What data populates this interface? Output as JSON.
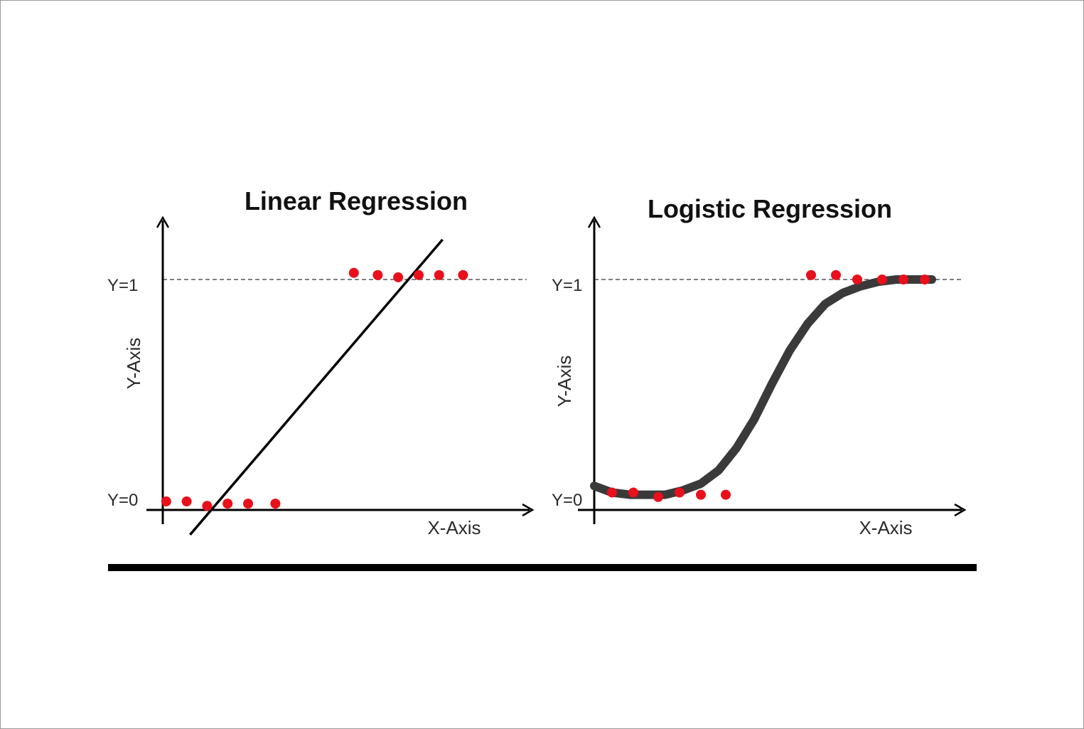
{
  "colors": {
    "points": "#e8101a",
    "line": "#000000",
    "curve": "#3a3a3a",
    "axis": "#000000",
    "threshold": "#555555",
    "baseline_bar": "#000000"
  },
  "chart_data": [
    {
      "type": "scatter",
      "title": "Linear Regression",
      "xlabel": "X-Axis",
      "ylabel": "Y-Axis",
      "xlim": [
        0,
        10
      ],
      "ylim": [
        -0.15,
        1.3
      ],
      "yticks": [
        {
          "value": 0,
          "label": "Y=0"
        },
        {
          "value": 1,
          "label": "Y=1"
        }
      ],
      "threshold_line": {
        "y": 1,
        "style": "dashed"
      },
      "series": [
        {
          "kind": "points",
          "x": [
            0.1,
            0.7,
            1.3,
            1.9,
            2.5,
            3.3
          ],
          "y": [
            0.0,
            0.0,
            -0.02,
            -0.01,
            -0.01,
            -0.01
          ]
        },
        {
          "kind": "points",
          "x": [
            5.6,
            6.3,
            6.9,
            7.5,
            8.1,
            8.8
          ],
          "y": [
            1.03,
            1.02,
            1.01,
            1.02,
            1.02,
            1.02
          ]
        },
        {
          "kind": "line",
          "x": [
            0.8,
            8.2
          ],
          "y": [
            -0.15,
            1.18
          ]
        }
      ]
    },
    {
      "type": "scatter",
      "title": "Logistic Regression",
      "xlabel": "X-Axis",
      "ylabel": "Y-Axis",
      "xlim": [
        0,
        10
      ],
      "ylim": [
        -0.05,
        1.3
      ],
      "yticks": [
        {
          "value": 0,
          "label": "Y=0"
        },
        {
          "value": 1,
          "label": "Y=1"
        }
      ],
      "threshold_line": {
        "y": 1,
        "style": "dashed"
      },
      "series": [
        {
          "kind": "points",
          "x": [
            0.5,
            1.1,
            1.8,
            2.4,
            3.0,
            3.7
          ],
          "y": [
            0.04,
            0.04,
            0.02,
            0.04,
            0.03,
            0.03
          ]
        },
        {
          "kind": "points",
          "x": [
            6.1,
            6.8,
            7.4,
            8.1,
            8.7,
            9.3
          ],
          "y": [
            1.02,
            1.02,
            1.0,
            1.0,
            1.0,
            1.0
          ]
        },
        {
          "kind": "sigmoid_curve",
          "x": [
            0.0,
            0.5,
            1.0,
            1.5,
            2.0,
            2.5,
            3.0,
            3.5,
            4.0,
            4.5,
            5.0,
            5.5,
            6.0,
            6.5,
            7.0,
            7.5,
            8.0,
            8.5,
            9.0,
            9.5
          ],
          "y": [
            0.07,
            0.04,
            0.03,
            0.03,
            0.03,
            0.05,
            0.08,
            0.14,
            0.24,
            0.37,
            0.53,
            0.68,
            0.8,
            0.89,
            0.94,
            0.97,
            0.99,
            1.0,
            1.0,
            1.0
          ]
        }
      ]
    }
  ]
}
